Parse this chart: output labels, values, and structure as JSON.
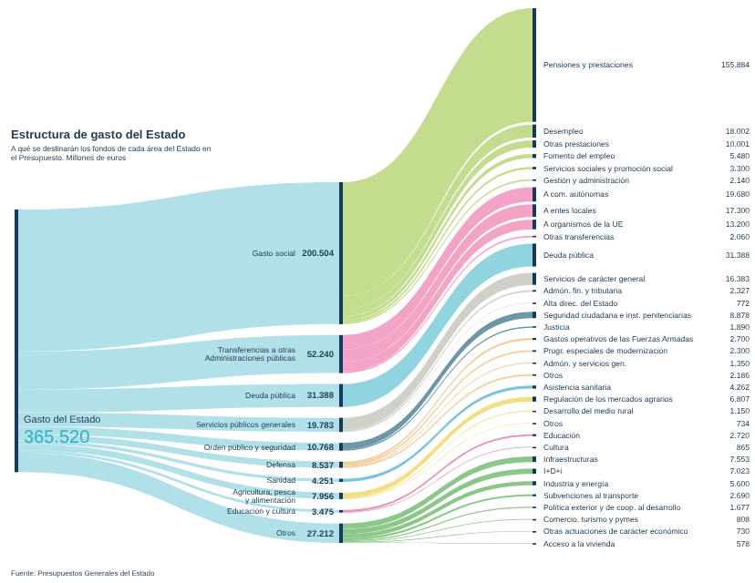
{
  "chart_data": {
    "type": "other",
    "title": "Estructura de gasto del Estado",
    "subtitle": "A qué se destinarán los fondos de cada área del Estado en el Presupuesto. Millones de euros",
    "xlabel": "Gasto del Estado",
    "annotations": [
      "365.520",
      "Fuente: Presupuestos Generales del Estado"
    ],
    "categories": [
      "Pensiones y prestaciones",
      "Desempleo",
      "Otras prestaciones",
      "Fomento del empleo",
      "Servicios sociales y promoción social",
      "Gestión y administración",
      "A com. autónomas",
      "A entes locales",
      "A organismos de la UE",
      "Otras transferencias",
      "Deuda pública",
      "Servicios de carácter general",
      "Admón. fin. y tributaria",
      "Alta direc. del Estado",
      "Seguridad ciudadana e inst. penitenciarias",
      "Justicia",
      "Gastos operativos de las Fuerzas Armadas",
      "Progr. especiales de modernización",
      "Admón. y servicios gen.",
      "Otros",
      "Asistencia sanitaria",
      "Regulación de los mercados agrarios",
      "Desarrollo del medio rural",
      "Otros",
      "Educación",
      "Cultura",
      "Infraestructuras",
      "I+D+i",
      "Industria y energía",
      "Subvenciones al transporte",
      "Política exterior y de coop. al desarrollo",
      "Comercio, turismo y pymes",
      "Otras actuaciones de carácter económico",
      "Acceso a la vivienda"
    ],
    "series": [
      {
        "name": "Gasto social",
        "values": [
          155884,
          18002,
          10001,
          5480,
          3300,
          2140,
          null,
          null,
          null,
          null,
          null,
          null,
          null,
          null,
          null,
          null,
          null,
          null,
          null,
          null,
          null,
          null,
          null,
          null,
          null,
          null,
          null,
          null,
          null,
          null,
          null,
          null,
          null,
          null
        ],
        "value_labels": [
          "155.884",
          "18.002",
          "10.001",
          "5.480",
          "3.300",
          "2.140",
          null,
          null,
          null,
          null,
          null,
          null,
          null,
          null,
          null,
          null,
          null,
          null,
          null,
          null,
          null,
          null,
          null,
          null,
          null,
          null,
          null,
          null,
          null,
          null,
          null,
          null,
          null,
          null
        ]
      },
      {
        "name": "Transferencias a otras Administraciones públicas",
        "values": [
          null,
          null,
          null,
          null,
          null,
          null,
          19680,
          17300,
          13200,
          2060,
          null,
          null,
          null,
          null,
          null,
          null,
          null,
          null,
          null,
          null,
          null,
          null,
          null,
          null,
          null,
          null,
          null,
          null,
          null,
          null,
          null,
          null,
          null,
          null
        ],
        "value_labels": [
          null,
          null,
          null,
          null,
          null,
          null,
          "19.680",
          "17.300",
          "13.200",
          "2.060",
          null,
          null,
          null,
          null,
          null,
          null,
          null,
          null,
          null,
          null,
          null,
          null,
          null,
          null,
          null,
          null,
          null,
          null,
          null,
          null,
          null,
          null,
          null,
          null
        ]
      },
      {
        "name": "Deuda pública",
        "values": [
          null,
          null,
          null,
          null,
          null,
          null,
          null,
          null,
          null,
          null,
          31388,
          null,
          null,
          null,
          null,
          null,
          null,
          null,
          null,
          null,
          null,
          null,
          null,
          null,
          null,
          null,
          null,
          null,
          null,
          null,
          null,
          null,
          null,
          null
        ],
        "value_labels": [
          null,
          null,
          null,
          null,
          null,
          null,
          null,
          null,
          null,
          null,
          "31.388",
          null,
          null,
          null,
          null,
          null,
          null,
          null,
          null,
          null,
          null,
          null,
          null,
          null,
          null,
          null,
          null,
          null,
          null,
          null,
          null,
          null,
          null,
          null
        ]
      },
      {
        "name": "Servicios públicos generales",
        "values": [
          null,
          null,
          null,
          null,
          null,
          null,
          null,
          null,
          null,
          null,
          null,
          16383,
          2327,
          772,
          null,
          null,
          null,
          null,
          null,
          null,
          null,
          null,
          null,
          null,
          null,
          null,
          null,
          null,
          null,
          null,
          null,
          null,
          null,
          null
        ],
        "value_labels": [
          null,
          null,
          null,
          null,
          null,
          null,
          null,
          null,
          null,
          null,
          null,
          "16.383",
          "2.327",
          "772",
          null,
          null,
          null,
          null,
          null,
          null,
          null,
          null,
          null,
          null,
          null,
          null,
          null,
          null,
          null,
          null,
          null,
          null,
          null,
          null
        ]
      },
      {
        "name": "Orden público y seguridad",
        "values": [
          null,
          null,
          null,
          null,
          null,
          null,
          null,
          null,
          null,
          null,
          null,
          null,
          null,
          null,
          8878,
          1890,
          null,
          null,
          null,
          null,
          null,
          null,
          null,
          null,
          null,
          null,
          null,
          null,
          null,
          null,
          null,
          null,
          null,
          null
        ],
        "value_labels": [
          null,
          null,
          null,
          null,
          null,
          null,
          null,
          null,
          null,
          null,
          null,
          null,
          null,
          null,
          "8.878",
          "1.890",
          null,
          null,
          null,
          null,
          null,
          null,
          null,
          null,
          null,
          null,
          null,
          null,
          null,
          null,
          null,
          null,
          null,
          null
        ]
      },
      {
        "name": "Defensa",
        "values": [
          null,
          null,
          null,
          null,
          null,
          null,
          null,
          null,
          null,
          null,
          null,
          null,
          null,
          null,
          null,
          null,
          2700,
          2300,
          1350,
          2186,
          null,
          null,
          null,
          null,
          null,
          null,
          null,
          null,
          null,
          null,
          null,
          null,
          null,
          null
        ],
        "value_labels": [
          null,
          null,
          null,
          null,
          null,
          null,
          null,
          null,
          null,
          null,
          null,
          null,
          null,
          null,
          null,
          null,
          "2.700",
          "2.300",
          "1.350",
          "2.186",
          null,
          null,
          null,
          null,
          null,
          null,
          null,
          null,
          null,
          null,
          null,
          null,
          null,
          null
        ]
      },
      {
        "name": "Sanidad",
        "values": [
          null,
          null,
          null,
          null,
          null,
          null,
          null,
          null,
          null,
          null,
          null,
          null,
          null,
          null,
          null,
          null,
          null,
          null,
          null,
          null,
          4262,
          null,
          null,
          null,
          null,
          null,
          null,
          null,
          null,
          null,
          null,
          null,
          null,
          null
        ],
        "value_labels": [
          null,
          null,
          null,
          null,
          null,
          null,
          null,
          null,
          null,
          null,
          null,
          null,
          null,
          null,
          null,
          null,
          null,
          null,
          null,
          null,
          "4.262",
          null,
          null,
          null,
          null,
          null,
          null,
          null,
          null,
          null,
          null,
          null,
          null,
          null
        ]
      },
      {
        "name": "Agricultura, pesca y alimentación",
        "values": [
          null,
          null,
          null,
          null,
          null,
          null,
          null,
          null,
          null,
          null,
          null,
          null,
          null,
          null,
          null,
          null,
          null,
          null,
          null,
          null,
          null,
          6807,
          1150,
          734,
          null,
          null,
          null,
          null,
          null,
          null,
          null,
          null,
          null,
          null
        ],
        "value_labels": [
          null,
          null,
          null,
          null,
          null,
          null,
          null,
          null,
          null,
          null,
          null,
          null,
          null,
          null,
          null,
          null,
          null,
          null,
          null,
          null,
          null,
          "6.807",
          "1.150",
          "734",
          null,
          null,
          null,
          null,
          null,
          null,
          null,
          null,
          null,
          null
        ]
      },
      {
        "name": "Educación y cultura",
        "values": [
          null,
          null,
          null,
          null,
          null,
          null,
          null,
          null,
          null,
          null,
          null,
          null,
          null,
          null,
          null,
          null,
          null,
          null,
          null,
          null,
          null,
          null,
          null,
          null,
          2720,
          865,
          null,
          null,
          null,
          null,
          null,
          null,
          null,
          null
        ],
        "value_labels": [
          null,
          null,
          null,
          null,
          null,
          null,
          null,
          null,
          null,
          null,
          null,
          null,
          null,
          null,
          null,
          null,
          null,
          null,
          null,
          null,
          null,
          null,
          null,
          null,
          "2.720",
          "865",
          null,
          null,
          null,
          null,
          null,
          null,
          null,
          null
        ]
      },
      {
        "name": "Otros",
        "values": [
          null,
          null,
          null,
          null,
          null,
          null,
          null,
          null,
          null,
          null,
          null,
          null,
          null,
          null,
          null,
          null,
          null,
          null,
          null,
          null,
          null,
          null,
          null,
          null,
          null,
          null,
          7553,
          7023,
          5600,
          2690,
          1677,
          808,
          730,
          578
        ],
        "value_labels": [
          null,
          null,
          null,
          null,
          null,
          null,
          null,
          null,
          null,
          null,
          null,
          null,
          null,
          null,
          null,
          null,
          null,
          null,
          null,
          null,
          null,
          null,
          null,
          null,
          null,
          null,
          "7.553",
          "7.023",
          "5.600",
          "2.690",
          "1.677",
          "808",
          "730",
          "578"
        ]
      }
    ],
    "colors": [
      "#c4dc8e",
      "#c4dc8e",
      "#c4dc8e",
      "#c4dc8e",
      "#c4dc8e",
      "#c4dc8e",
      "#f3a3c6",
      "#f3a3c6",
      "#f3a3c6",
      "#f3a3c6",
      "#8fd4df",
      "#cfd0c8",
      "#cfd0c8",
      "#cfd0c8",
      "#6e97a6",
      "#6e97a6",
      "#f3cd98",
      "#f3cd98",
      "#f3cd98",
      "#f3cd98",
      "#7cc3dd",
      "#f1df86",
      "#f1df86",
      "#f1df86",
      "#e596b6",
      "#e596b6",
      "#8cc78a",
      "#8cc78a",
      "#8cc78a",
      "#8cc78a",
      "#8cc78a",
      "#8cc78a",
      "#8cc78a",
      "#8cc78a"
    ],
    "totals": [
      "200.504",
      "52.240",
      "31.388",
      "19.783",
      "10.768",
      "8.537",
      "4.251",
      "7.956",
      "3.475",
      "27.212"
    ]
  }
}
